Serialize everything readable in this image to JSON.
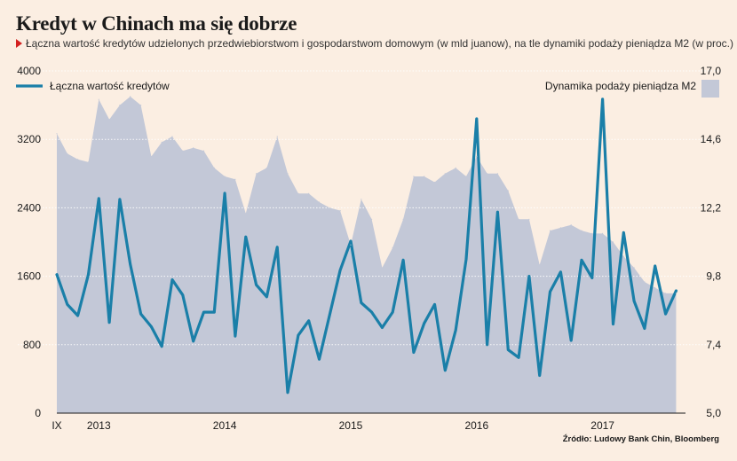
{
  "title": "Kredyt w Chinach ma się dobrze",
  "subtitle": "Łączna wartość kredytów udzielonych przedwiebiorstwom i gospodarstwom domowym (w mld juanow), na tle dynamiki podaży pieniądza M2 (w proc.)",
  "source": "Źródło: Ludowy Bank Chin, Bloomberg",
  "colors": {
    "line": "#1a7fa8",
    "area": "#c3c8d7",
    "background": "#fbeee2"
  },
  "chart_data": {
    "type": "line",
    "title": "Kredyt w Chinach ma się dobrze",
    "x_start": "2012-09",
    "x_tick_labels": [
      {
        "label": "IX",
        "month_index": 0
      },
      {
        "label": "2013",
        "month_index": 4
      },
      {
        "label": "2014",
        "month_index": 16
      },
      {
        "label": "2015",
        "month_index": 28
      },
      {
        "label": "2016",
        "month_index": 40
      },
      {
        "label": "2017",
        "month_index": 52
      }
    ],
    "y_left": {
      "ylim": [
        0,
        4000
      ],
      "ticks": [
        "0",
        "800",
        "1600",
        "2400",
        "3200",
        "4000"
      ]
    },
    "y_right": {
      "ylim": [
        5.0,
        17.0
      ],
      "ticks": [
        "5,0",
        "7,4",
        "9,8",
        "12,2",
        "14,6",
        "17,0"
      ]
    },
    "grid": true,
    "series": [
      {
        "name": "Łączna wartość kredytów",
        "type": "line",
        "axis": "left",
        "values": [
          1620,
          1270,
          1140,
          1620,
          2510,
          1060,
          2500,
          1740,
          1160,
          1010,
          780,
          1560,
          1380,
          840,
          1180,
          1180,
          2570,
          900,
          2060,
          1500,
          1360,
          1940,
          240,
          910,
          1080,
          630,
          1150,
          1670,
          2010,
          1290,
          1180,
          1000,
          1180,
          1790,
          710,
          1050,
          1270,
          500,
          970,
          1800,
          3440,
          800,
          2350,
          740,
          650,
          1600,
          440,
          1420,
          1650,
          850,
          1790,
          1580,
          3670,
          1040,
          2110,
          1310,
          990,
          1720,
          1160,
          1430
        ]
      },
      {
        "name": "Dynamika podaży pieniądza M2",
        "type": "area",
        "axis": "right",
        "values": [
          14.8,
          14.1,
          13.9,
          13.8,
          16.0,
          15.3,
          15.8,
          16.1,
          15.8,
          14.0,
          14.5,
          14.7,
          14.2,
          14.3,
          14.2,
          13.6,
          13.3,
          13.2,
          12.0,
          13.4,
          13.6,
          14.7,
          13.4,
          12.7,
          12.7,
          12.4,
          12.2,
          12.1,
          10.9,
          12.5,
          11.8,
          10.1,
          10.8,
          11.8,
          13.3,
          13.3,
          13.1,
          13.4,
          13.6,
          13.3,
          14.0,
          13.4,
          13.4,
          12.8,
          11.8,
          11.8,
          10.2,
          11.4,
          11.5,
          11.6,
          11.4,
          11.3,
          11.3,
          11.0,
          10.5,
          10.1,
          9.6,
          9.4,
          9.2,
          9.2
        ]
      }
    ]
  }
}
